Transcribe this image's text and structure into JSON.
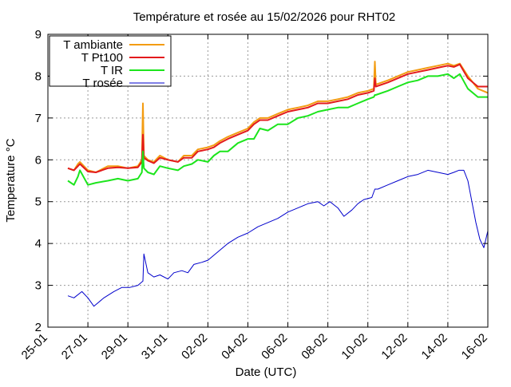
{
  "chart_data": {
    "type": "line",
    "title": "Température et rosée au 15/02/2026 pour RHT02",
    "xlabel": "Date (UTC)",
    "ylabel": "Temperature °C",
    "xlim": [
      0,
      22
    ],
    "ylim": [
      2,
      9
    ],
    "x_tick_values": [
      0,
      2,
      4,
      6,
      8,
      10,
      12,
      14,
      16,
      18,
      20,
      22
    ],
    "x_tick_labels": [
      "25-01",
      "27-01",
      "29-01",
      "31-01",
      "02-02",
      "04-02",
      "06-02",
      "08-02",
      "10-02",
      "12-02",
      "14-02",
      "16-02"
    ],
    "y_ticks": [
      2,
      3,
      4,
      5,
      6,
      7,
      8,
      9
    ],
    "grid": true,
    "legend_position": "top-left",
    "series": [
      {
        "name": "T ambiante",
        "color": "#f39c12",
        "x": [
          1.0,
          1.3,
          1.5,
          1.6,
          2.0,
          2.4,
          3.0,
          3.5,
          4.0,
          4.5,
          4.7,
          4.75,
          4.8,
          5.0,
          5.3,
          5.6,
          6.0,
          6.5,
          6.8,
          7.2,
          7.5,
          8.0,
          8.3,
          8.6,
          9.0,
          9.5,
          10.0,
          10.3,
          10.6,
          11.0,
          11.5,
          12.0,
          12.5,
          13.0,
          13.5,
          14.0,
          14.5,
          15.0,
          15.5,
          16.0,
          16.3,
          16.35,
          16.4,
          17.0,
          17.5,
          18.0,
          18.5,
          19.0,
          19.5,
          20.0,
          20.3,
          20.6,
          21.0,
          21.5,
          22.0
        ],
        "y": [
          5.8,
          5.75,
          5.9,
          5.95,
          5.75,
          5.7,
          5.85,
          5.85,
          5.8,
          5.85,
          6.0,
          7.35,
          6.1,
          6.0,
          5.95,
          6.1,
          6.0,
          5.95,
          6.1,
          6.1,
          6.25,
          6.3,
          6.35,
          6.45,
          6.55,
          6.65,
          6.75,
          6.9,
          7.0,
          7.0,
          7.1,
          7.2,
          7.25,
          7.3,
          7.4,
          7.4,
          7.45,
          7.5,
          7.6,
          7.65,
          7.7,
          8.35,
          7.8,
          7.9,
          8.0,
          8.1,
          8.15,
          8.2,
          8.25,
          8.3,
          8.25,
          8.3,
          8.0,
          7.7,
          7.6
        ]
      },
      {
        "name": "T Pt100",
        "color": "#e31a1c",
        "x": [
          1.0,
          1.3,
          1.5,
          1.6,
          2.0,
          2.4,
          3.0,
          3.5,
          4.0,
          4.5,
          4.7,
          4.75,
          4.8,
          5.0,
          5.3,
          5.6,
          6.0,
          6.5,
          6.8,
          7.2,
          7.5,
          8.0,
          8.3,
          8.6,
          9.0,
          9.5,
          10.0,
          10.3,
          10.6,
          11.0,
          11.5,
          12.0,
          12.5,
          13.0,
          13.5,
          14.0,
          14.5,
          15.0,
          15.5,
          16.0,
          16.3,
          16.35,
          16.4,
          17.0,
          17.5,
          18.0,
          18.5,
          19.0,
          19.5,
          20.0,
          20.3,
          20.6,
          21.0,
          21.5,
          22.0
        ],
        "y": [
          5.8,
          5.75,
          5.85,
          5.9,
          5.72,
          5.7,
          5.8,
          5.82,
          5.8,
          5.82,
          5.95,
          6.6,
          6.05,
          5.98,
          5.92,
          6.05,
          6.0,
          5.95,
          6.05,
          6.05,
          6.2,
          6.25,
          6.3,
          6.4,
          6.5,
          6.6,
          6.7,
          6.85,
          6.95,
          6.95,
          7.05,
          7.15,
          7.2,
          7.25,
          7.35,
          7.35,
          7.4,
          7.45,
          7.55,
          7.6,
          7.65,
          7.95,
          7.75,
          7.85,
          7.95,
          8.05,
          8.1,
          8.15,
          8.2,
          8.25,
          8.22,
          8.28,
          7.95,
          7.75,
          7.75
        ]
      },
      {
        "name": "T IR",
        "color": "#1ce51c",
        "x": [
          1.0,
          1.3,
          1.5,
          1.6,
          2.0,
          2.4,
          3.0,
          3.5,
          4.0,
          4.5,
          4.7,
          4.75,
          4.8,
          5.0,
          5.3,
          5.6,
          6.0,
          6.5,
          6.8,
          7.2,
          7.5,
          8.0,
          8.3,
          8.6,
          9.0,
          9.5,
          10.0,
          10.3,
          10.6,
          11.0,
          11.5,
          12.0,
          12.5,
          13.0,
          13.5,
          14.0,
          14.5,
          15.0,
          15.5,
          16.0,
          16.3,
          16.35,
          16.4,
          17.0,
          17.5,
          18.0,
          18.5,
          19.0,
          19.5,
          20.0,
          20.3,
          20.6,
          21.0,
          21.5,
          22.0
        ],
        "y": [
          5.5,
          5.4,
          5.6,
          5.75,
          5.4,
          5.45,
          5.5,
          5.55,
          5.5,
          5.55,
          5.7,
          6.2,
          5.8,
          5.7,
          5.65,
          5.85,
          5.8,
          5.75,
          5.85,
          5.9,
          6.0,
          5.95,
          6.1,
          6.2,
          6.2,
          6.4,
          6.5,
          6.5,
          6.75,
          6.7,
          6.85,
          6.85,
          7.0,
          7.05,
          7.15,
          7.2,
          7.25,
          7.25,
          7.35,
          7.45,
          7.5,
          7.55,
          7.55,
          7.65,
          7.75,
          7.85,
          7.9,
          8.0,
          8.0,
          8.05,
          7.95,
          8.05,
          7.7,
          7.5,
          7.5
        ]
      },
      {
        "name": "T rosée",
        "color": "#0000cc",
        "x": [
          1.0,
          1.3,
          1.7,
          2.0,
          2.3,
          2.8,
          3.3,
          3.7,
          4.1,
          4.5,
          4.75,
          4.8,
          5.0,
          5.3,
          5.6,
          6.0,
          6.3,
          6.7,
          7.0,
          7.3,
          7.7,
          8.0,
          8.5,
          9.0,
          9.5,
          10.0,
          10.5,
          11.0,
          11.5,
          12.0,
          12.5,
          13.0,
          13.5,
          13.8,
          14.1,
          14.5,
          14.8,
          15.2,
          15.5,
          15.8,
          16.2,
          16.35,
          16.5,
          17.0,
          17.5,
          18.0,
          18.5,
          19.0,
          19.5,
          20.0,
          20.3,
          20.55,
          20.8,
          21.0,
          21.2,
          21.4,
          21.6,
          21.8,
          22.0
        ],
        "y": [
          2.75,
          2.7,
          2.85,
          2.7,
          2.5,
          2.7,
          2.85,
          2.95,
          2.95,
          3.0,
          3.1,
          3.75,
          3.3,
          3.2,
          3.25,
          3.15,
          3.3,
          3.35,
          3.3,
          3.5,
          3.55,
          3.6,
          3.8,
          4.0,
          4.15,
          4.25,
          4.4,
          4.5,
          4.6,
          4.75,
          4.85,
          4.95,
          5.0,
          4.9,
          5.0,
          4.85,
          4.65,
          4.8,
          4.95,
          5.05,
          5.1,
          5.3,
          5.3,
          5.4,
          5.5,
          5.6,
          5.65,
          5.75,
          5.7,
          5.65,
          5.7,
          5.75,
          5.75,
          5.5,
          5.0,
          4.5,
          4.1,
          3.9,
          4.3
        ]
      }
    ]
  }
}
